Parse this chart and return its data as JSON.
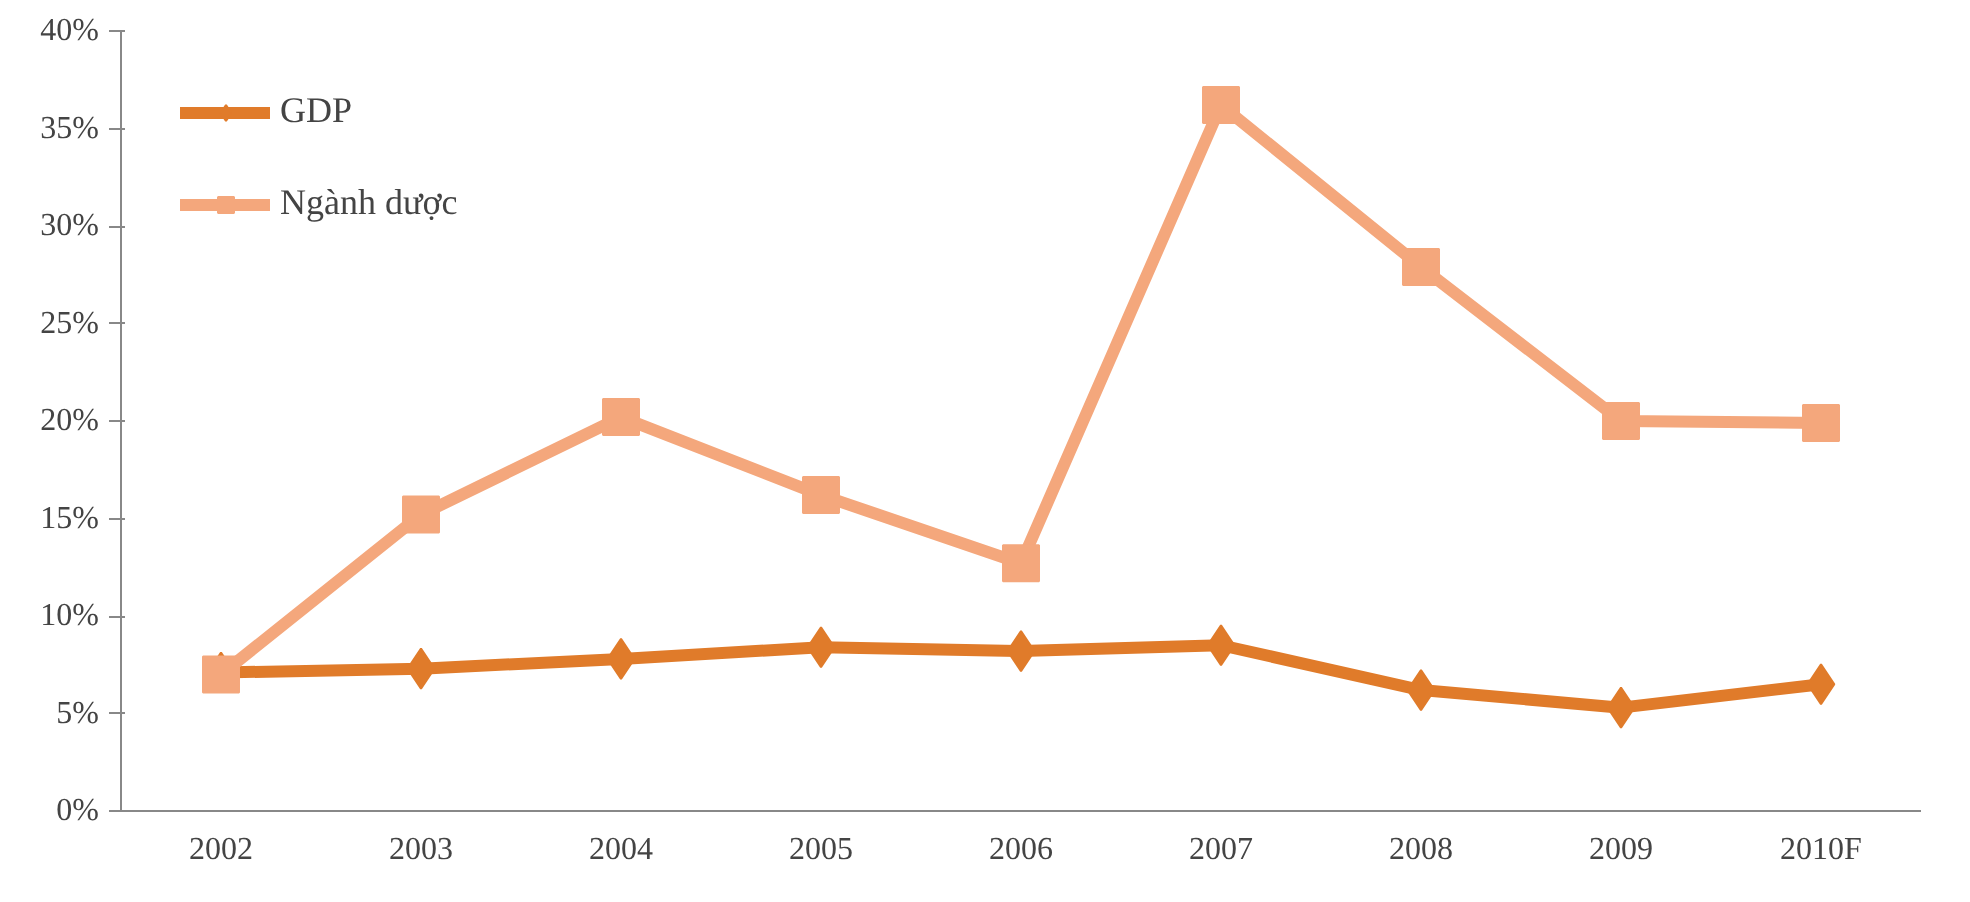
{
  "chart_data": {
    "type": "line",
    "categories": [
      "2002",
      "2003",
      "2004",
      "2005",
      "2006",
      "2007",
      "2008",
      "2009",
      "2010F"
    ],
    "series": [
      {
        "name": "GDP",
        "color": "#e07b2a",
        "marker": "diamond",
        "values": [
          7.1,
          7.3,
          7.8,
          8.4,
          8.2,
          8.5,
          6.2,
          5.3,
          6.5
        ]
      },
      {
        "name": "Ngành dược",
        "color": "#f4a77c",
        "marker": "square",
        "values": [
          7.0,
          15.2,
          20.2,
          16.2,
          12.7,
          36.2,
          27.9,
          20.0,
          19.9
        ]
      }
    ],
    "ylim": [
      0,
      40
    ],
    "yticks": [
      {
        "value": 0,
        "label": "0%"
      },
      {
        "value": 5,
        "label": "5%"
      },
      {
        "value": 10,
        "label": "10%"
      },
      {
        "value": 15,
        "label": "15%"
      },
      {
        "value": 20,
        "label": "20%"
      },
      {
        "value": 25,
        "label": "25%"
      },
      {
        "value": 30,
        "label": "30%"
      },
      {
        "value": 35,
        "label": "35%"
      },
      {
        "value": 40,
        "label": "40%"
      }
    ],
    "grid": false,
    "legend": "top left",
    "line_style": "solid"
  }
}
